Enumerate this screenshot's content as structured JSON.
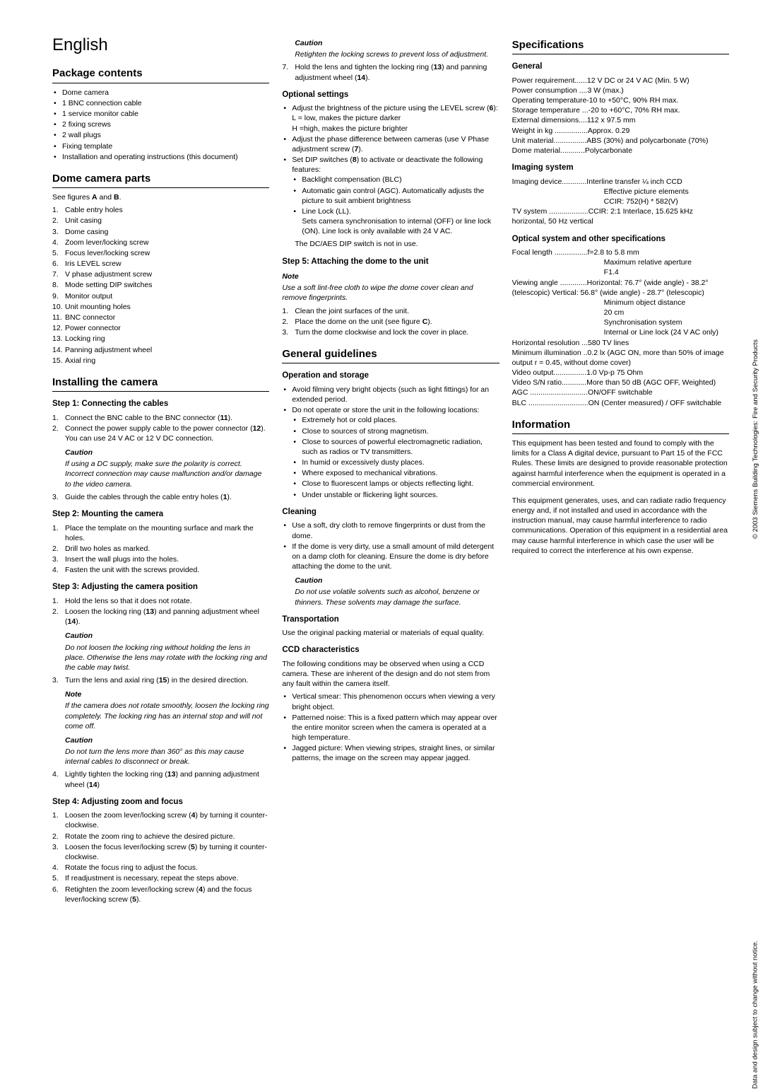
{
  "lang": "English",
  "side1": "© 2003 Siemens Building Technologies: Fire and Security Products",
  "side2": "Data and design subject to change without notice.",
  "s_pkg": "Package contents",
  "pkg": [
    "Dome camera",
    "1 BNC connection cable",
    "1 service monitor cable",
    "2 fixing screws",
    "2 wall plugs",
    "Fixing template",
    "Installation and operating instructions (this document)"
  ],
  "s_parts": "Dome camera parts",
  "parts_intro": "See figures A and B.",
  "parts": [
    "Cable entry holes",
    "Unit casing",
    "Dome casing",
    "Zoom lever/locking screw",
    "Focus lever/locking screw",
    "Iris LEVEL screw",
    "V phase adjustment screw",
    "Mode setting DIP switches",
    "Monitor output",
    "Unit mounting holes",
    "BNC connector",
    "Power connector",
    "Locking ring",
    "Panning adjustment wheel",
    "Axial ring"
  ],
  "s_install": "Installing the camera",
  "step1": "Step 1: Connecting the cables",
  "st1_1": "Connect the BNC cable to the BNC connector (11).",
  "st1_2": "Connect the power supply cable to the power connector (12).",
  "st1_2b": "You can use 24 V AC or 12 V DC connection.",
  "caution": "Caution",
  "note": "Note",
  "st1_c": "If using a DC supply, make sure the polarity is correct. Incorrect connection may cause malfunction and/or damage to the video camera.",
  "st1_3": "Guide the cables through the cable entry holes (1).",
  "step2": "Step 2: Mounting the camera",
  "st2": [
    "Place the template on the mounting surface and mark the holes.",
    "Drill two holes as marked.",
    "Insert the wall plugs into the holes.",
    "Fasten the unit with the screws provided."
  ],
  "step3": "Step 3: Adjusting the camera position",
  "st3_1": "Hold the lens so that it does not rotate.",
  "st3_2": "Loosen the locking ring (13) and panning adjustment wheel (14).",
  "st3_c1": "Do not loosen the locking ring without holding the lens in place. Otherwise the lens may rotate with the locking ring and the cable may twist.",
  "st3_3": "Turn the lens and axial ring (15) in the desired direction.",
  "st3_n": "If the camera does not rotate smoothly, loosen the locking ring completely. The locking ring has an internal stop and will not come off.",
  "st3_c2": "Do not turn the lens more than 360° as this may cause internal cables to disconnect or break.",
  "st3_4": "Lightly tighten the locking ring (13) and panning adjustment wheel (14)",
  "step4": "Step 4: Adjusting zoom and focus",
  "st4": [
    "Loosen the zoom lever/locking screw (4) by turning it counter-clockwise.",
    "Rotate the zoom ring to achieve the desired picture.",
    "Loosen the focus lever/locking screw (5) by turning it counter-clockwise.",
    "Rotate the focus ring to adjust the focus.",
    "If readjustment is necessary, repeat the steps above.",
    "Retighten the zoom lever/locking screw (4) and the focus lever/locking screw (5)."
  ],
  "st4_c": "Retighten the locking screws to prevent loss of adjustment.",
  "st4_7": "Hold the lens and tighten the locking ring (13) and panning adjustment wheel (14).",
  "s_opt": "Optional settings",
  "opt1": "Adjust the brightness of the picture using the LEVEL screw (6):",
  "opt1a": "L = low, makes the picture darker",
  "opt1b": "H =high, makes the picture brighter",
  "opt2": "Adjust the phase difference between cameras (use V Phase adjustment screw (7).",
  "opt3": "Set DIP switches (8) to activate or deactivate the following features:",
  "opt3a": "Backlight compensation (BLC)",
  "opt3b": "Automatic gain control (AGC). Automatically adjusts the picture to suit ambient brightness",
  "opt3c": "Line Lock (LL).",
  "opt3c2": "Sets camera synchronisation to internal (OFF) or line lock (ON). Line lock is only available with 24 V AC.",
  "opt4": "The DC/AES DIP switch is not in use.",
  "step5": "Step 5: Attaching the dome to the unit",
  "st5_n": "Use a soft lint-free cloth to wipe the dome cover clean and remove fingerprints.",
  "st5": [
    "Clean the joint surfaces of the unit.",
    "Place the dome on the unit (see figure C).",
    "Turn the dome clockwise and lock the cover in place."
  ],
  "s_gen": "General guidelines",
  "s_op": "Operation and storage",
  "op1": "Avoid filming very bright objects (such as light fittings) for an extended period.",
  "op2": "Do not operate or store the unit in the following locations:",
  "op2l": [
    "Extremely hot or cold places.",
    "Close to sources of strong magnetism.",
    "Close to sources of powerful electromagnetic radiation, such as radios or TV transmitters.",
    "In humid or excessively dusty places.",
    "Where exposed to mechanical vibrations.",
    "Close to fluorescent lamps or objects reflecting light.",
    "Under unstable or flickering light sources."
  ],
  "s_clean": "Cleaning",
  "cl1": "Use a soft, dry cloth to remove fingerprints or dust from the dome.",
  "cl2": "If the dome is very dirty, use a small amount of mild detergent on a damp cloth for cleaning. Ensure the dome is dry before attaching the dome to the unit.",
  "cl_c": "Do not use volatile solvents such as alcohol, benzene or thinners. These solvents may damage the surface.",
  "s_trans": "Transportation",
  "trans": "Use the original packing material or materials of equal quality.",
  "s_ccd": "CCD characteristics",
  "ccd_i": "The following conditions may be observed when using a CCD camera. These are inherent of the design and do not stem from any fault within the camera itself.",
  "ccd": [
    "Vertical smear: This phenomenon occurs when viewing a very bright object.",
    "Patterned noise: This is a fixed pattern which may appear over the entire monitor screen when the camera is operated at a high temperature.",
    "Jagged picture: When viewing stripes, straight lines, or similar patterns, the image on the screen may appear jagged."
  ],
  "s_spec": "Specifications",
  "sp_gen": "General",
  "sp_g": [
    [
      "Power requirement",
      "......12 V DC or 24 V AC (Min. 5 W)"
    ],
    [
      "Power consumption",
      " ....3 W (max.)"
    ],
    [
      "Operating temperature",
      "-10 to +50°C, 90% RH max."
    ],
    [
      "Storage temperature",
      " ...-20 to +60°C, 70% RH max."
    ],
    [
      "External dimensions",
      "....112 x 97.5 mm"
    ],
    [
      "Weight in kg",
      " ................Approx. 0.29"
    ],
    [
      "Unit material",
      "................ABS (30%) and polycarbonate (70%)"
    ],
    [
      "Dome material",
      "............Polycarbonate"
    ]
  ],
  "sp_img": "Imaging system",
  "sp_i": [
    [
      "Imaging device",
      "............Interline transfer ¼ inch CCD"
    ],
    [
      "Effective picture elements",
      ""
    ],
    [
      "",
      "CCIR: 752(H) * 582(V)"
    ],
    [
      "TV system",
      " ...................CCIR: 2:1 Interlace, 15.625 kHz horizontal, 50 Hz vertical"
    ]
  ],
  "sp_opt": "Optical system and other specifications",
  "sp_o": [
    [
      "Focal length",
      " ................f=2.8 to 5.8 mm"
    ],
    [
      "Maximum relative aperture",
      ""
    ],
    [
      "",
      "F1.4"
    ],
    [
      "Viewing angle",
      " .............Horizontal: 76.7° (wide angle) - 38.2° (telescopic) Vertical: 56.8° (wide angle) - 28.7° (telescopic)"
    ],
    [
      "Minimum object distance",
      ""
    ],
    [
      "",
      "20 cm"
    ],
    [
      "Synchronisation system",
      ""
    ],
    [
      "",
      "Internal or Line lock (24 V AC only)"
    ],
    [
      "Horizontal resolution",
      " ...580 TV lines"
    ],
    [
      "Minimum illumination",
      " ..0.2 lx (AGC ON, more than 50% of image output r = 0.45, without dome cover)"
    ],
    [
      "Video output",
      "................1.0 Vp-p 75 Ohm"
    ],
    [
      "Video S/N ratio",
      "............More than 50 dB (AGC OFF, Weighted)"
    ],
    [
      "AGC",
      " ............................ON/OFF switchable"
    ],
    [
      "BLC",
      " .............................ON (Center measured) / OFF switchable"
    ]
  ],
  "s_info": "Information",
  "info1": "This equipment has been tested and found to comply with the limits for a Class A digital device, pursuant to Part 15 of the FCC Rules. These limits are designed to provide reasonable protection against harmful interference when the equipment is operated in a commercial environment.",
  "info2": "This equipment generates, uses, and can radiate radio frequency energy and, if not installed and used in accordance with the instruction manual, may cause harmful interference to radio communications. Operation of this equipment in a residential area may cause harmful interference in which case the user will be required to correct the interference at his own expense."
}
